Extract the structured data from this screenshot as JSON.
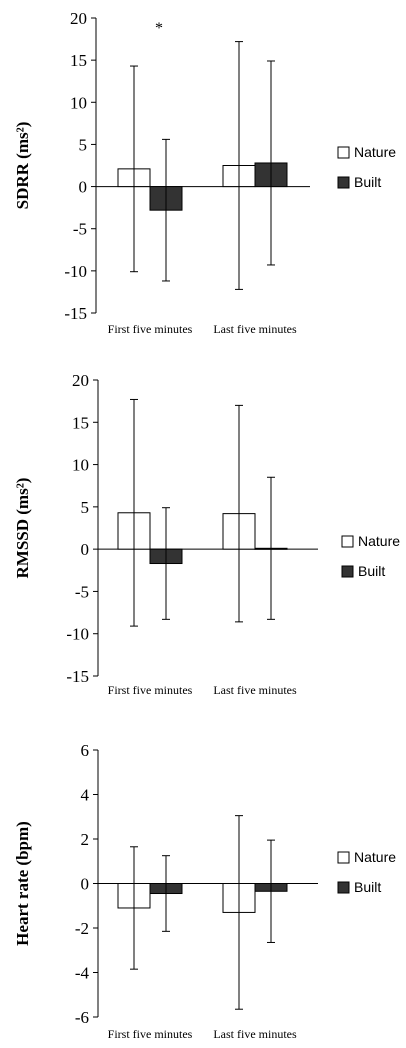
{
  "chart_data": [
    {
      "type": "bar",
      "ylabel": "SDRR (ms²)",
      "ylim": [
        -15,
        20
      ],
      "yticks": [
        -15,
        -10,
        -5,
        0,
        5,
        10,
        15,
        20
      ],
      "categories": [
        "First five minutes",
        "Last five minutes"
      ],
      "series": [
        {
          "name": "Nature",
          "values": [
            2.1,
            2.5
          ],
          "error": [
            12.2,
            14.7
          ],
          "color": "#ffffff"
        },
        {
          "name": "Built",
          "values": [
            -2.8,
            2.8
          ],
          "error": [
            8.4,
            12.1
          ],
          "color": "#333333"
        }
      ],
      "annotations": [
        {
          "text": "*",
          "category": 0
        }
      ],
      "legend": "right"
    },
    {
      "type": "bar",
      "ylabel": "RMSSD (ms²)",
      "ylim": [
        -15,
        20
      ],
      "yticks": [
        -15,
        -10,
        -5,
        0,
        5,
        10,
        15,
        20
      ],
      "categories": [
        "First five minutes",
        "Last five minutes"
      ],
      "series": [
        {
          "name": "Nature",
          "values": [
            4.3,
            4.2
          ],
          "error": [
            13.4,
            12.8
          ],
          "color": "#ffffff"
        },
        {
          "name": "Built",
          "values": [
            -1.7,
            0.1
          ],
          "error": [
            6.6,
            8.4
          ],
          "color": "#333333"
        }
      ],
      "legend": "right"
    },
    {
      "type": "bar",
      "ylabel": "Heart rate (bpm)",
      "ylim": [
        -6,
        6
      ],
      "yticks": [
        -6,
        -4,
        -2,
        0,
        2,
        4,
        6
      ],
      "categories": [
        "First five minutes",
        "Last five minutes"
      ],
      "series": [
        {
          "name": "Nature",
          "values": [
            -1.1,
            -1.3
          ],
          "error": [
            2.75,
            4.35
          ],
          "color": "#ffffff"
        },
        {
          "name": "Built",
          "values": [
            -0.45,
            -0.35
          ],
          "error": [
            1.7,
            2.3
          ],
          "color": "#333333"
        }
      ],
      "legend": "right"
    }
  ]
}
